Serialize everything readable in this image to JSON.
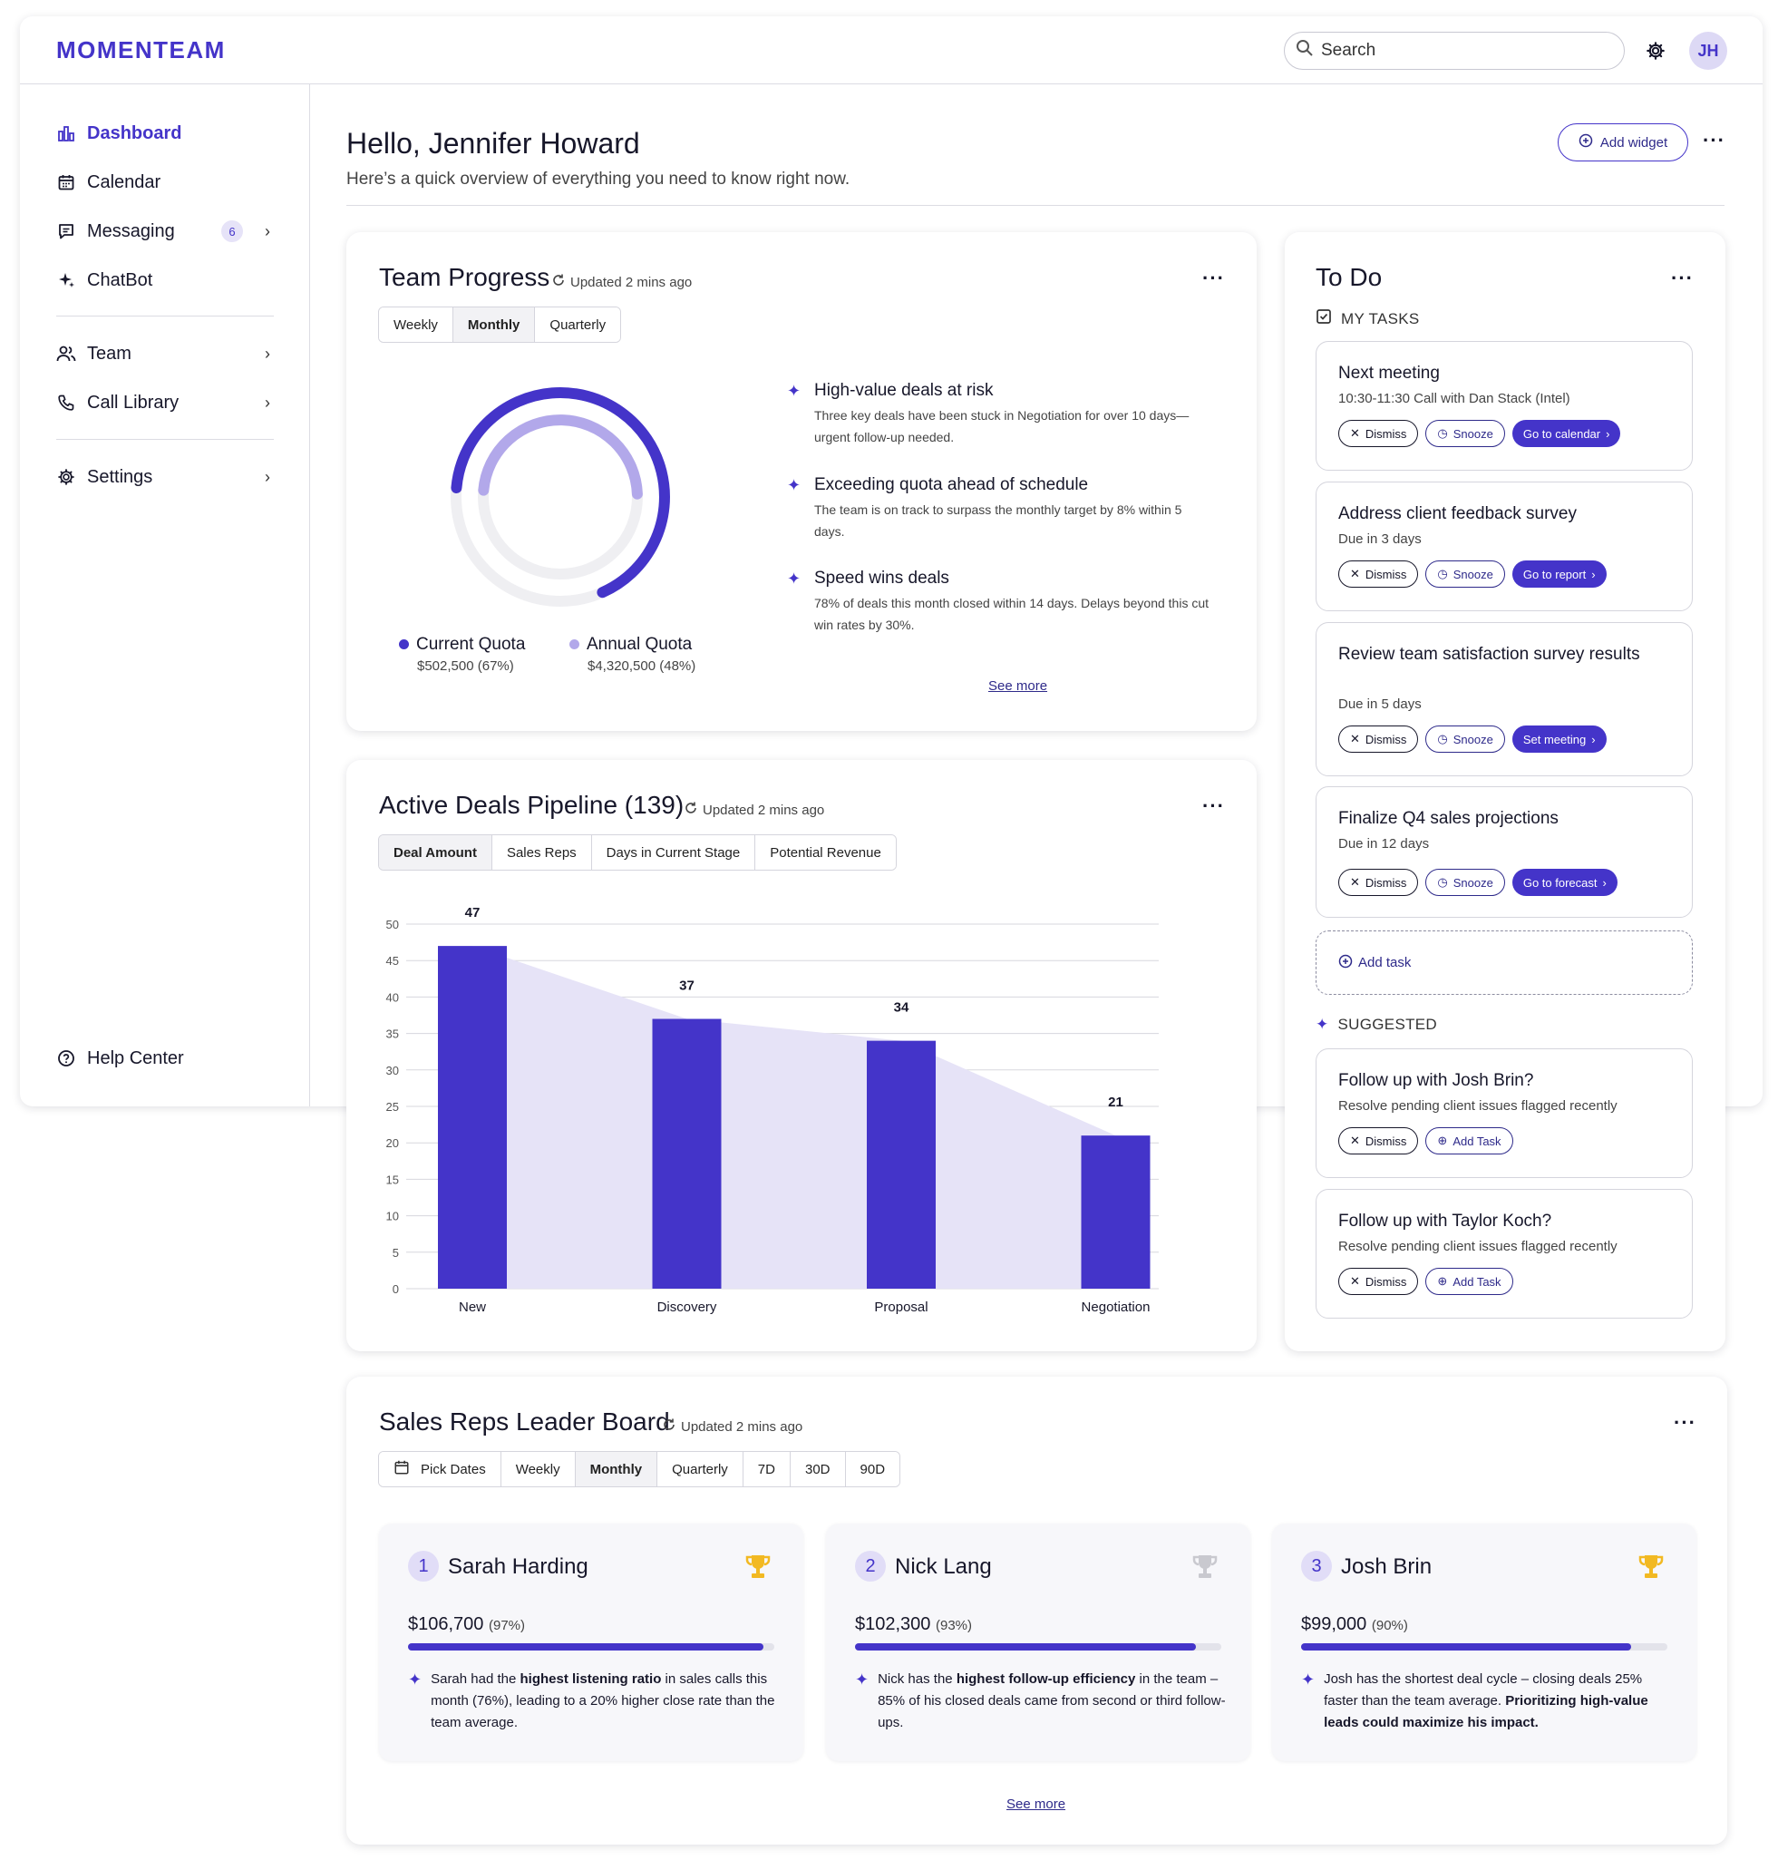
{
  "app": {
    "logo": "MOMENTEAM"
  },
  "topbar": {
    "search_placeholder": "Search",
    "avatar_initials": "JH"
  },
  "sidebar": {
    "items": [
      {
        "label": "Dashboard"
      },
      {
        "label": "Calendar"
      },
      {
        "label": "Messaging",
        "badge": "6"
      },
      {
        "label": "ChatBot"
      },
      {
        "label": "Team"
      },
      {
        "label": "Call Library"
      },
      {
        "label": "Settings"
      }
    ],
    "help": "Help Center"
  },
  "header": {
    "greeting": "Hello, Jennifer Howard",
    "subtitle": "Here’s a quick overview of everything you need to know right now.",
    "add_widget": "Add widget"
  },
  "team_progress": {
    "title": "Team Progress",
    "updated": "Updated 2 mins ago",
    "tabs": [
      "Weekly",
      "Monthly",
      "Quarterly"
    ],
    "selected_tab": "Monthly",
    "current_quota": {
      "label": "Current Quota",
      "value": "$502,500 (67%)",
      "fraction": 0.67,
      "color": "#4434c9"
    },
    "annual_quota": {
      "label": "Annual Quota",
      "value": "$4,320,500 (48%)",
      "fraction": 0.48,
      "color": "#b2a8ea"
    },
    "insights": [
      {
        "title": "High-value deals at risk",
        "desc": "Three key deals have been stuck in Negotiation for over 10 days—urgent follow-up needed."
      },
      {
        "title": "Exceeding quota ahead of schedule",
        "desc": "The team is on track to surpass the monthly target by 8% within 5 days."
      },
      {
        "title": "Speed wins deals",
        "desc": "78% of deals this month closed within 14 days. Delays beyond this cut win rates by 30%."
      }
    ],
    "see_more": "See more"
  },
  "pipeline": {
    "title": "Active Deals Pipeline (139)",
    "updated": "Updated 2 mins ago",
    "tabs": [
      "Deal Amount",
      "Sales Reps",
      "Days in Current Stage",
      "Potential Revenue"
    ],
    "selected_tab": "Deal Amount"
  },
  "chart_data": {
    "type": "bar",
    "categories": [
      "New",
      "Discovery",
      "Proposal",
      "Negotiation"
    ],
    "values": [
      47,
      37,
      34,
      21
    ],
    "yticks": [
      0,
      5,
      10,
      15,
      20,
      25,
      30,
      35,
      40,
      45,
      50
    ],
    "ylim": [
      0,
      50
    ],
    "title": "",
    "xlabel": "",
    "ylabel": "",
    "grid": true,
    "bar_color": "#4434c9",
    "area_color": "#e6e3f7"
  },
  "todo": {
    "title": "To Do",
    "my_tasks_label": "MY TASKS",
    "tasks": [
      {
        "title": "Next meeting",
        "sub": "10:30-11:30 Call with Dan Stack (Intel)",
        "action": "Go to calendar"
      },
      {
        "title": "Address client feedback survey",
        "sub": "Due in 3 days",
        "action": "Go to report"
      },
      {
        "title": "Review team satisfaction survey results",
        "sub": "Due in 5 days",
        "action": "Set meeting"
      },
      {
        "title": "Finalize Q4 sales projections",
        "sub": "Due in 12 days",
        "action": "Go to forecast"
      }
    ],
    "dismiss": "Dismiss",
    "snooze": "Snooze",
    "add_task": "Add task",
    "suggested_label": "SUGGESTED",
    "suggested": [
      {
        "title": "Follow up with Josh Brin?",
        "sub": "Resolve pending client issues flagged recently",
        "action": "Add Task"
      },
      {
        "title": "Follow up with Taylor Koch?",
        "sub": "Resolve pending client issues flagged recently",
        "action": "Add Task"
      }
    ]
  },
  "leaderboard": {
    "title": "Sales Reps Leader Board",
    "updated": "Updated 2 mins ago",
    "tabs": [
      "Pick Dates",
      "Weekly",
      "Monthly",
      "Quarterly",
      "7D",
      "30D",
      "90D"
    ],
    "selected_tab": "Monthly",
    "reps": [
      {
        "rank": "1",
        "name": "Sarah Harding",
        "amount": "$106,700",
        "pct": "(97%)",
        "progress": 0.97,
        "trophy_color": "#f2b922",
        "insight": [
          {
            "t": "Sarah had the "
          },
          {
            "b": "highest listening ratio"
          },
          {
            "t": " in sales calls this month (76%), leading to a 20% higher close rate than the team average."
          }
        ]
      },
      {
        "rank": "2",
        "name": "Nick Lang",
        "amount": "$102,300",
        "pct": "(93%)",
        "progress": 0.93,
        "trophy_color": "#c9c9cf",
        "insight": [
          {
            "t": "Nick has the "
          },
          {
            "b": "highest follow-up efficiency"
          },
          {
            "t": " in the team – 85% of his closed deals came from second or third follow-ups."
          }
        ]
      },
      {
        "rank": "3",
        "name": "Josh Brin",
        "amount": "$99,000",
        "pct": "(90%)",
        "progress": 0.9,
        "trophy_color": "#f2b922",
        "insight": [
          {
            "t": "Josh has the shortest deal cycle – closing deals 25% faster than the team average. "
          },
          {
            "b": "Prioritizing high-value leads could maximize his impact."
          }
        ]
      }
    ],
    "see_more": "See more"
  }
}
